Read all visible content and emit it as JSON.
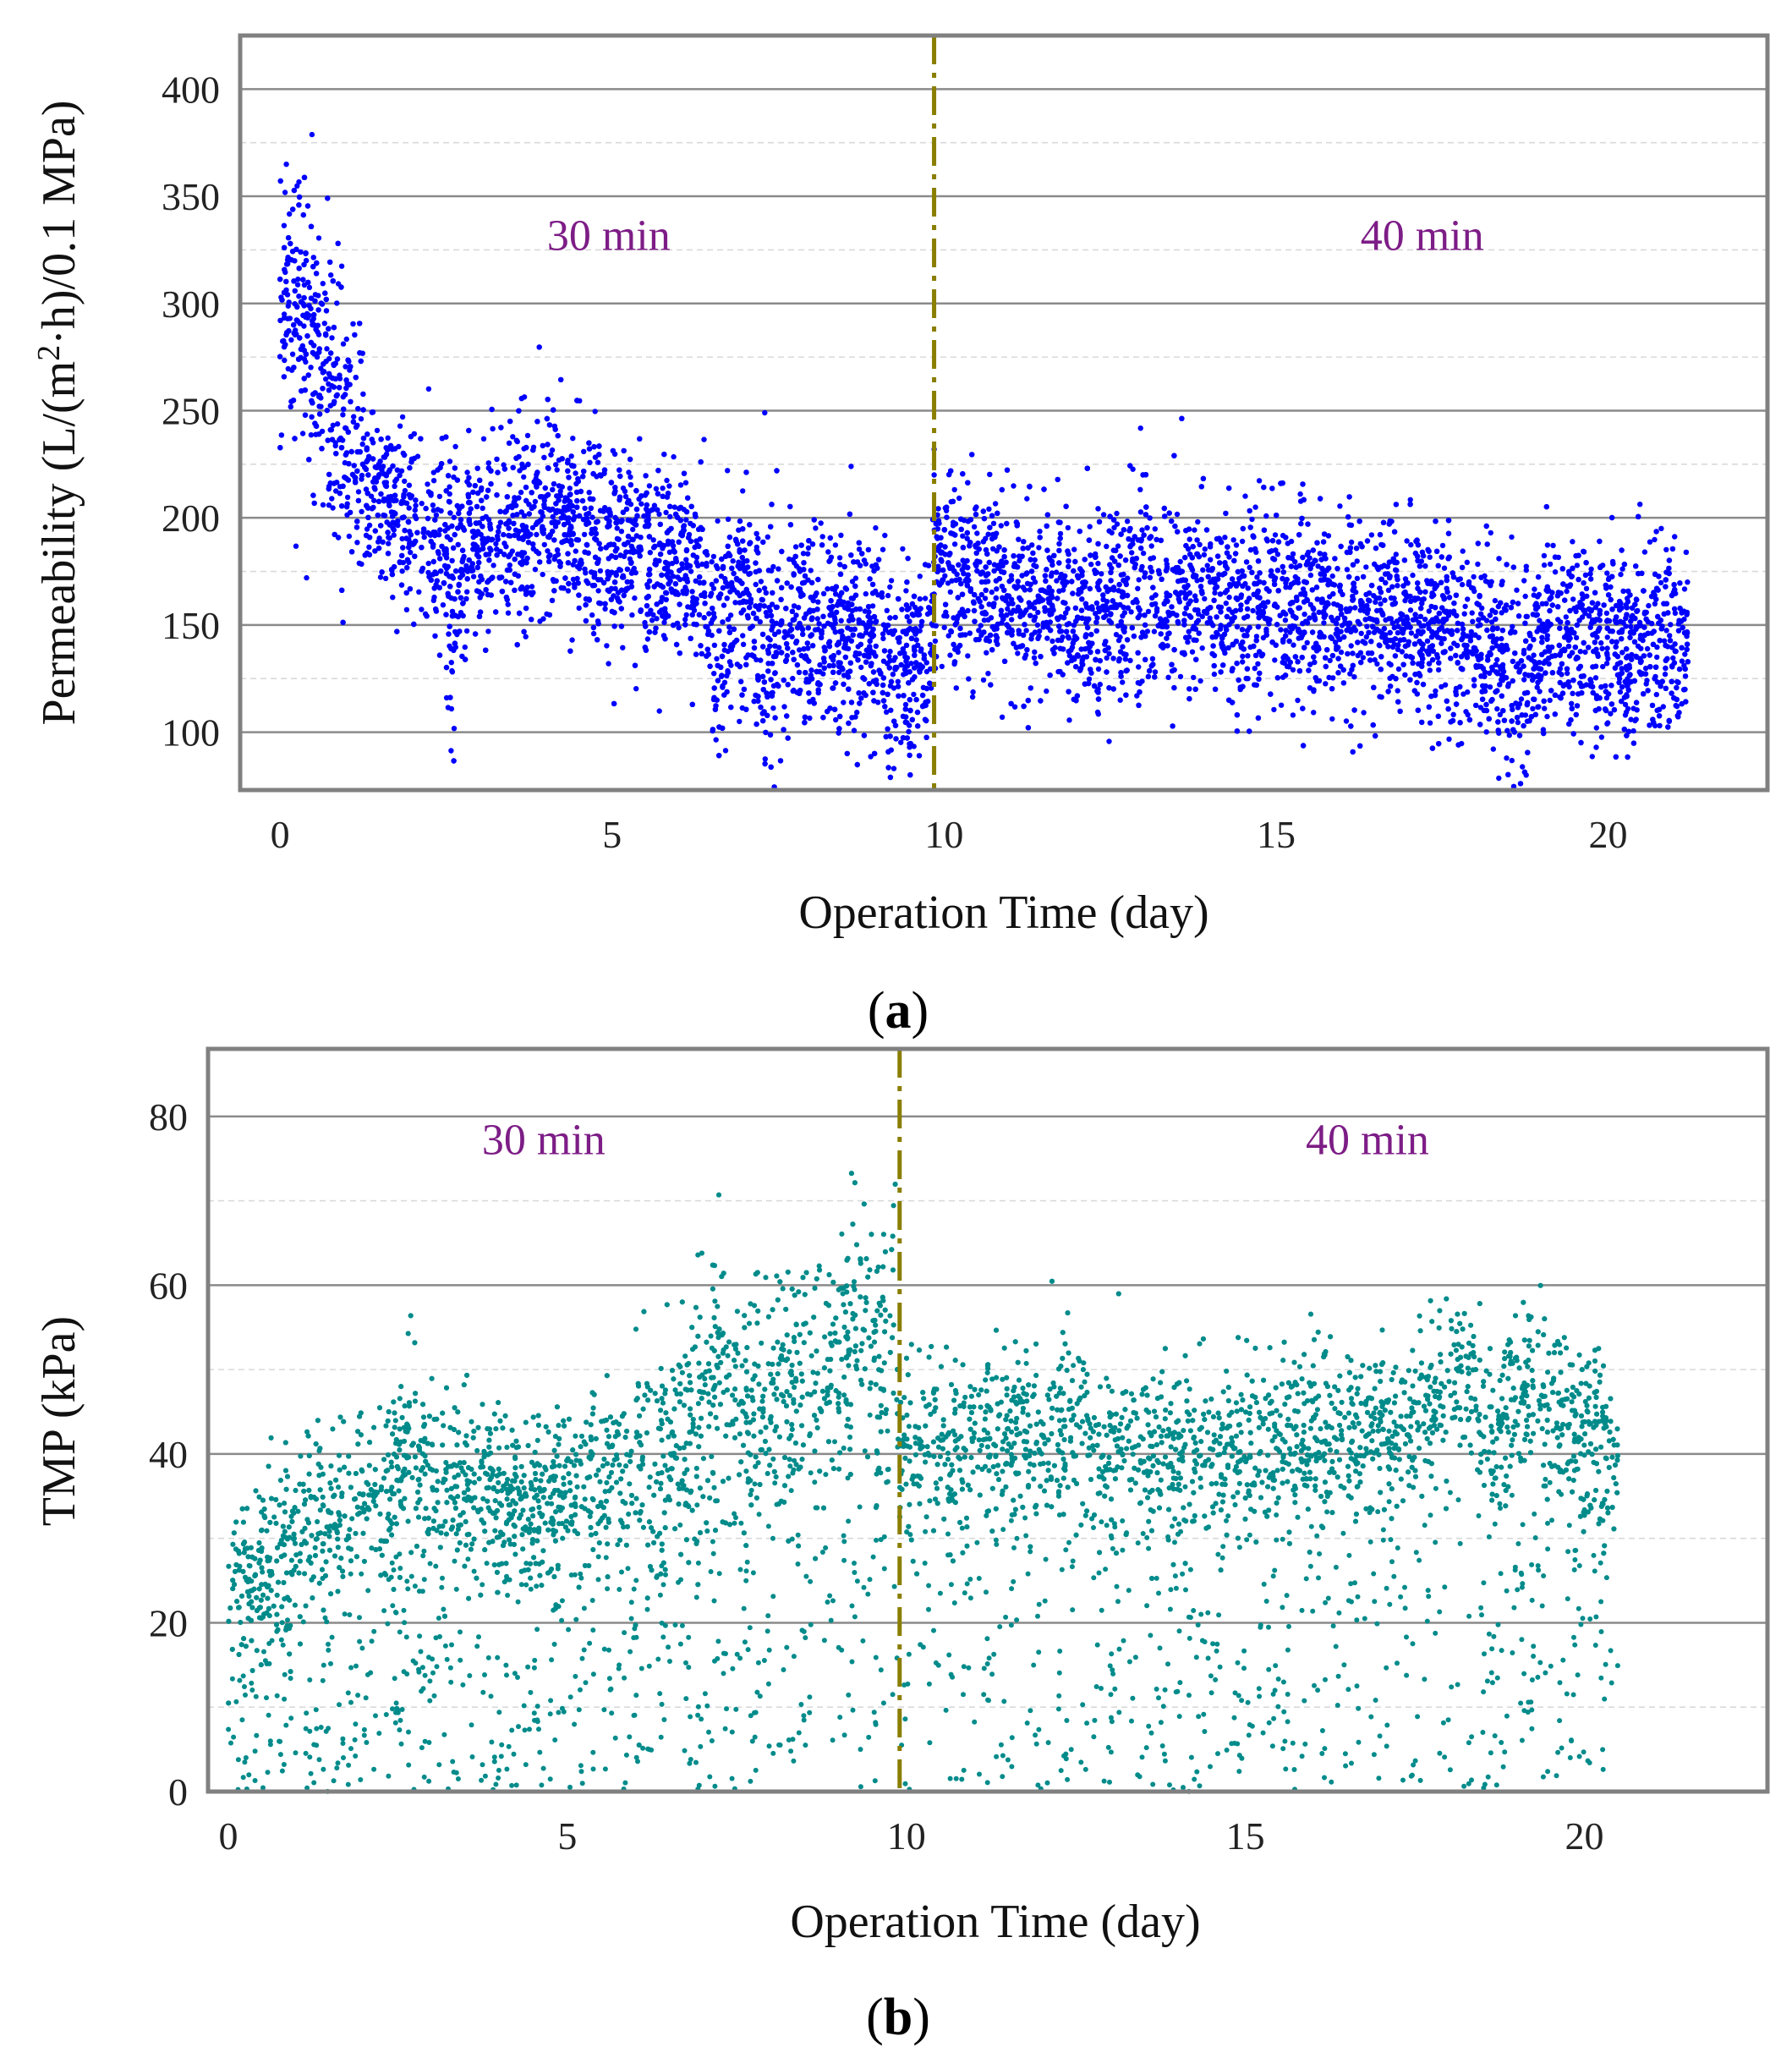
{
  "chart_data": [
    {
      "id": "a",
      "type": "scatter",
      "caption": "(a)",
      "caption_letter": "a",
      "title": "",
      "xlabel": "Operation Time (day)",
      "ylabel_parts": [
        "Permeability (L/(m",
        "2",
        "·h)/0.1 MPa)"
      ],
      "xlim": [
        -0.6,
        22.4
      ],
      "ylim": [
        73,
        425
      ],
      "xticks": [
        0,
        5,
        10,
        15,
        20
      ],
      "yticks": [
        100,
        150,
        200,
        250,
        300,
        350,
        400
      ],
      "minor_grid": [
        125,
        175,
        225,
        275,
        325,
        375
      ],
      "grid": true,
      "marker_color": "#0000ff",
      "divider_x": 9.85,
      "regions": [
        {
          "label": "30 min",
          "x": 4.95,
          "y": 325
        },
        {
          "label": "40 min",
          "x": 17.2,
          "y": 325
        }
      ],
      "trend": [
        [
          0.0,
          310
        ],
        [
          0.3,
          290
        ],
        [
          0.7,
          265
        ],
        [
          1.0,
          240
        ],
        [
          1.4,
          210
        ],
        [
          2.0,
          195
        ],
        [
          3.0,
          185
        ],
        [
          3.5,
          195
        ],
        [
          4.2,
          205
        ],
        [
          4.8,
          190
        ],
        [
          5.3,
          185
        ],
        [
          5.8,
          180
        ],
        [
          6.4,
          170
        ],
        [
          7.0,
          160
        ],
        [
          8.0,
          150
        ],
        [
          9.0,
          140
        ],
        [
          9.8,
          135
        ],
        [
          9.86,
          175
        ],
        [
          10.5,
          172
        ],
        [
          11.5,
          160
        ],
        [
          12.0,
          152
        ],
        [
          13.0,
          165
        ],
        [
          14.5,
          160
        ],
        [
          16.5,
          158
        ],
        [
          17.5,
          147
        ],
        [
          18.2,
          140
        ],
        [
          18.6,
          130
        ],
        [
          19.0,
          145
        ],
        [
          21.2,
          142
        ]
      ],
      "spread": 22,
      "x_end": 21.2,
      "n_points": 9000,
      "low_dips": [
        [
          2.6,
          132
        ],
        [
          6.6,
          120
        ],
        [
          7.4,
          113
        ],
        [
          9.3,
          105
        ],
        [
          18.7,
          115
        ],
        [
          20.3,
          125
        ]
      ]
    },
    {
      "id": "b",
      "type": "scatter",
      "caption": "(b)",
      "caption_letter": "b",
      "title": "",
      "xlabel": "Operation Time (day)",
      "ylabel": "TMP (kPa)",
      "xlim": [
        -0.3,
        22.7
      ],
      "ylim": [
        0,
        88
      ],
      "xticks": [
        0,
        5,
        10,
        15,
        20
      ],
      "yticks": [
        0,
        20,
        40,
        60,
        80
      ],
      "minor_grid": [
        10,
        30,
        50,
        70
      ],
      "grid": true,
      "marker_color": "#008b8b",
      "divider_x": 9.9,
      "regions": [
        {
          "label": "30 min",
          "x": 4.65,
          "y": 75.5
        },
        {
          "label": "40 min",
          "x": 16.8,
          "y": 75.5
        }
      ],
      "trend": [
        [
          0.0,
          23
        ],
        [
          0.5,
          26
        ],
        [
          1.0,
          30
        ],
        [
          2.0,
          35
        ],
        [
          2.7,
          37
        ],
        [
          3.5,
          36
        ],
        [
          4.5,
          35
        ],
        [
          5.5,
          37
        ],
        [
          6.3,
          40
        ],
        [
          7.0,
          44
        ],
        [
          8.0,
          46
        ],
        [
          9.0,
          50
        ],
        [
          9.8,
          55
        ],
        [
          9.9,
          40
        ],
        [
          11.0,
          40
        ],
        [
          12.3,
          43
        ],
        [
          13.0,
          40
        ],
        [
          15.0,
          41
        ],
        [
          16.0,
          42
        ],
        [
          17.5,
          43
        ],
        [
          18.2,
          50
        ],
        [
          18.5,
          42
        ],
        [
          19.3,
          47
        ],
        [
          19.8,
          42
        ],
        [
          20.5,
          40
        ]
      ],
      "spread": 5,
      "x_end": 20.5,
      "n_points": 9000,
      "peaks": [
        [
          2.7,
          54
        ],
        [
          7.3,
          63
        ],
        [
          9.3,
          71
        ],
        [
          18.3,
          62
        ],
        [
          19.3,
          58
        ]
      ],
      "sparse_points": 1100
    }
  ]
}
